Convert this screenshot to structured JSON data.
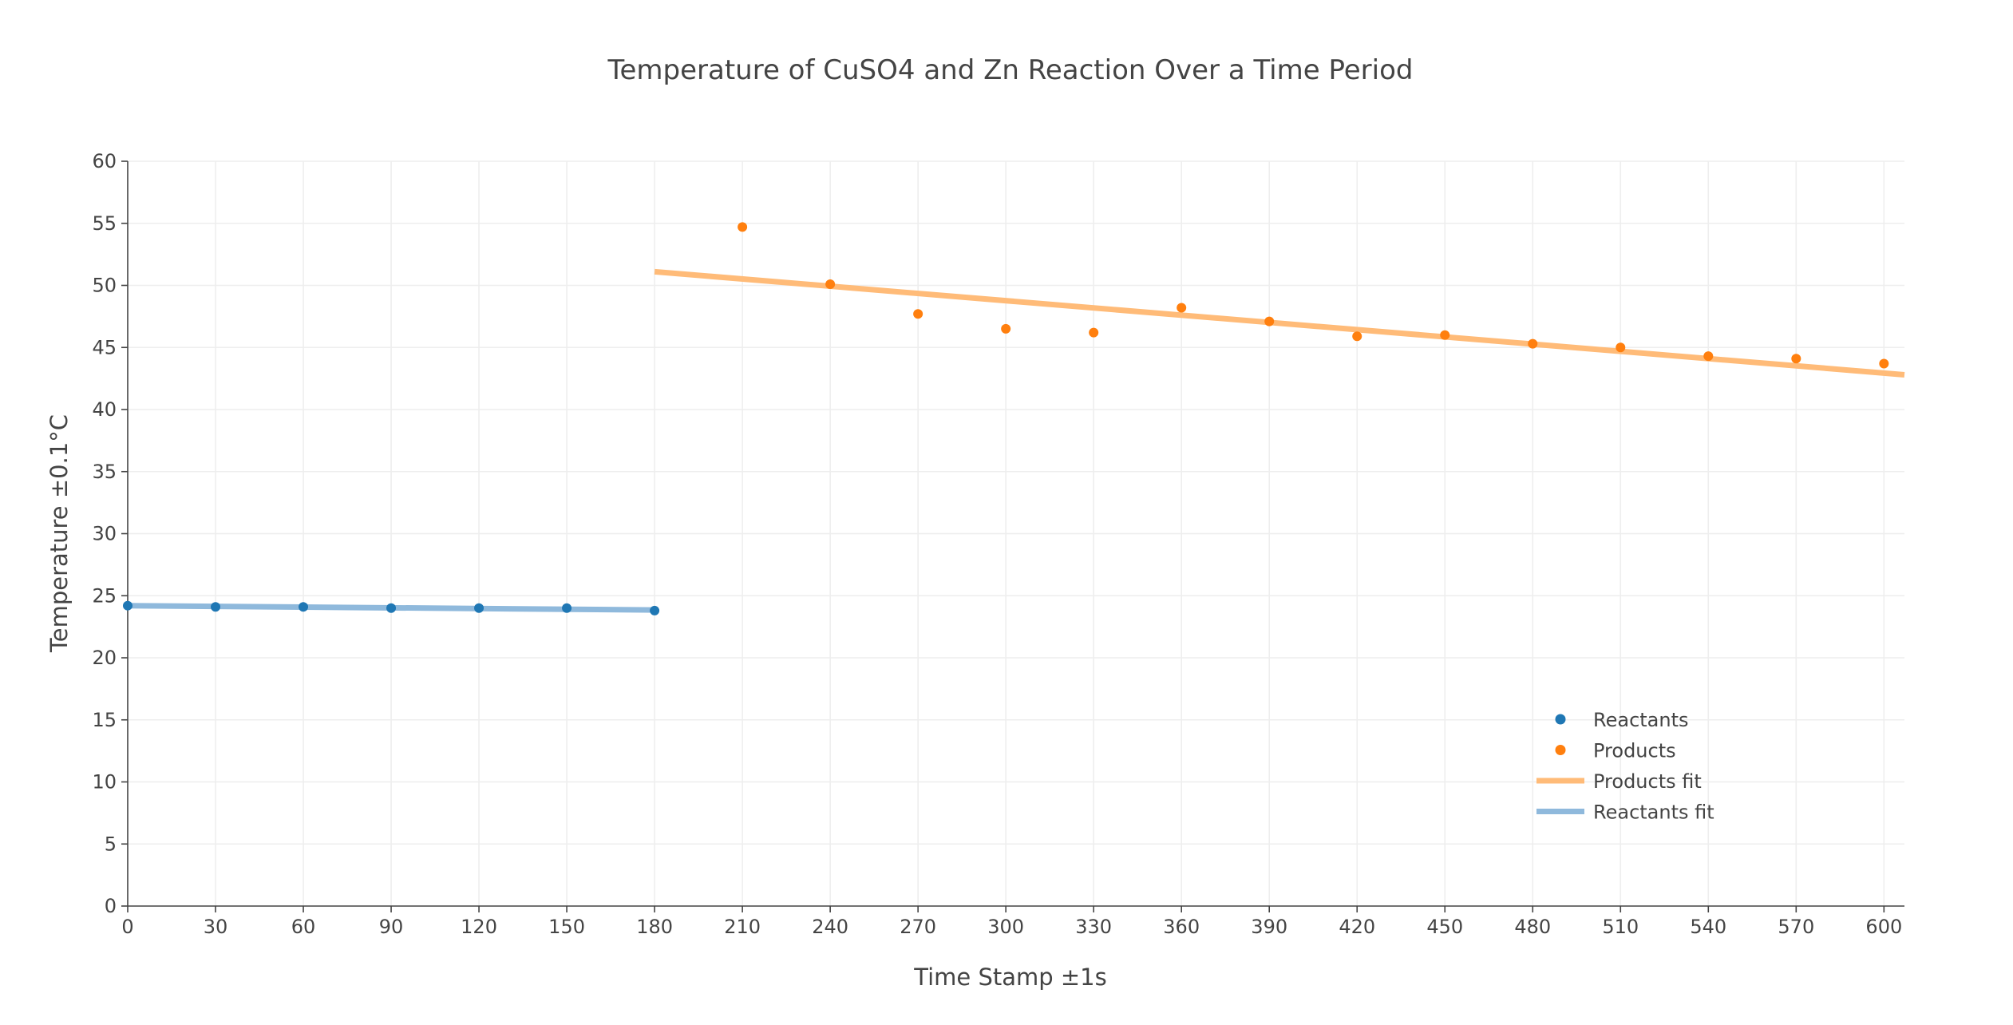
{
  "chart_data": {
    "type": "scatter",
    "title": "Temperature of CuSO4 and Zn Reaction Over a Time Period",
    "xlabel": "Time Stamp ±1s",
    "ylabel": "Temperature ±0.1°C",
    "xlim": [
      0,
      607
    ],
    "ylim": [
      0,
      60
    ],
    "xticks": [
      0,
      30,
      60,
      90,
      120,
      150,
      180,
      210,
      240,
      270,
      300,
      330,
      360,
      390,
      420,
      450,
      480,
      510,
      540,
      570,
      600
    ],
    "yticks": [
      0,
      5,
      10,
      15,
      20,
      25,
      30,
      35,
      40,
      45,
      50,
      55,
      60
    ],
    "grid": true,
    "legend_position": "bottom-right",
    "series": [
      {
        "name": "Reactants",
        "mode": "markers",
        "color": "#1f77b4",
        "x": [
          0,
          30,
          60,
          90,
          120,
          150,
          180
        ],
        "y": [
          24.2,
          24.1,
          24.1,
          24.0,
          24.0,
          24.0,
          23.8
        ]
      },
      {
        "name": "Products",
        "mode": "markers",
        "color": "#ff7f0e",
        "x": [
          210,
          240,
          270,
          300,
          330,
          360,
          390,
          420,
          450,
          480,
          510,
          540,
          570,
          600
        ],
        "y": [
          54.7,
          50.1,
          47.7,
          46.5,
          46.2,
          48.2,
          47.1,
          45.9,
          46.0,
          45.3,
          45.0,
          44.3,
          44.1,
          43.7
        ]
      },
      {
        "name": "Products fit",
        "mode": "lines",
        "color": "#ffbb78",
        "x": [
          180,
          607
        ],
        "y": [
          51.1,
          42.8
        ]
      },
      {
        "name": "Reactants fit",
        "mode": "lines",
        "color": "#8fb9dc",
        "x": [
          0,
          180
        ],
        "y": [
          24.2,
          23.85
        ]
      }
    ],
    "legend_order": [
      "Reactants",
      "Products",
      "Products fit",
      "Reactants fit"
    ]
  }
}
